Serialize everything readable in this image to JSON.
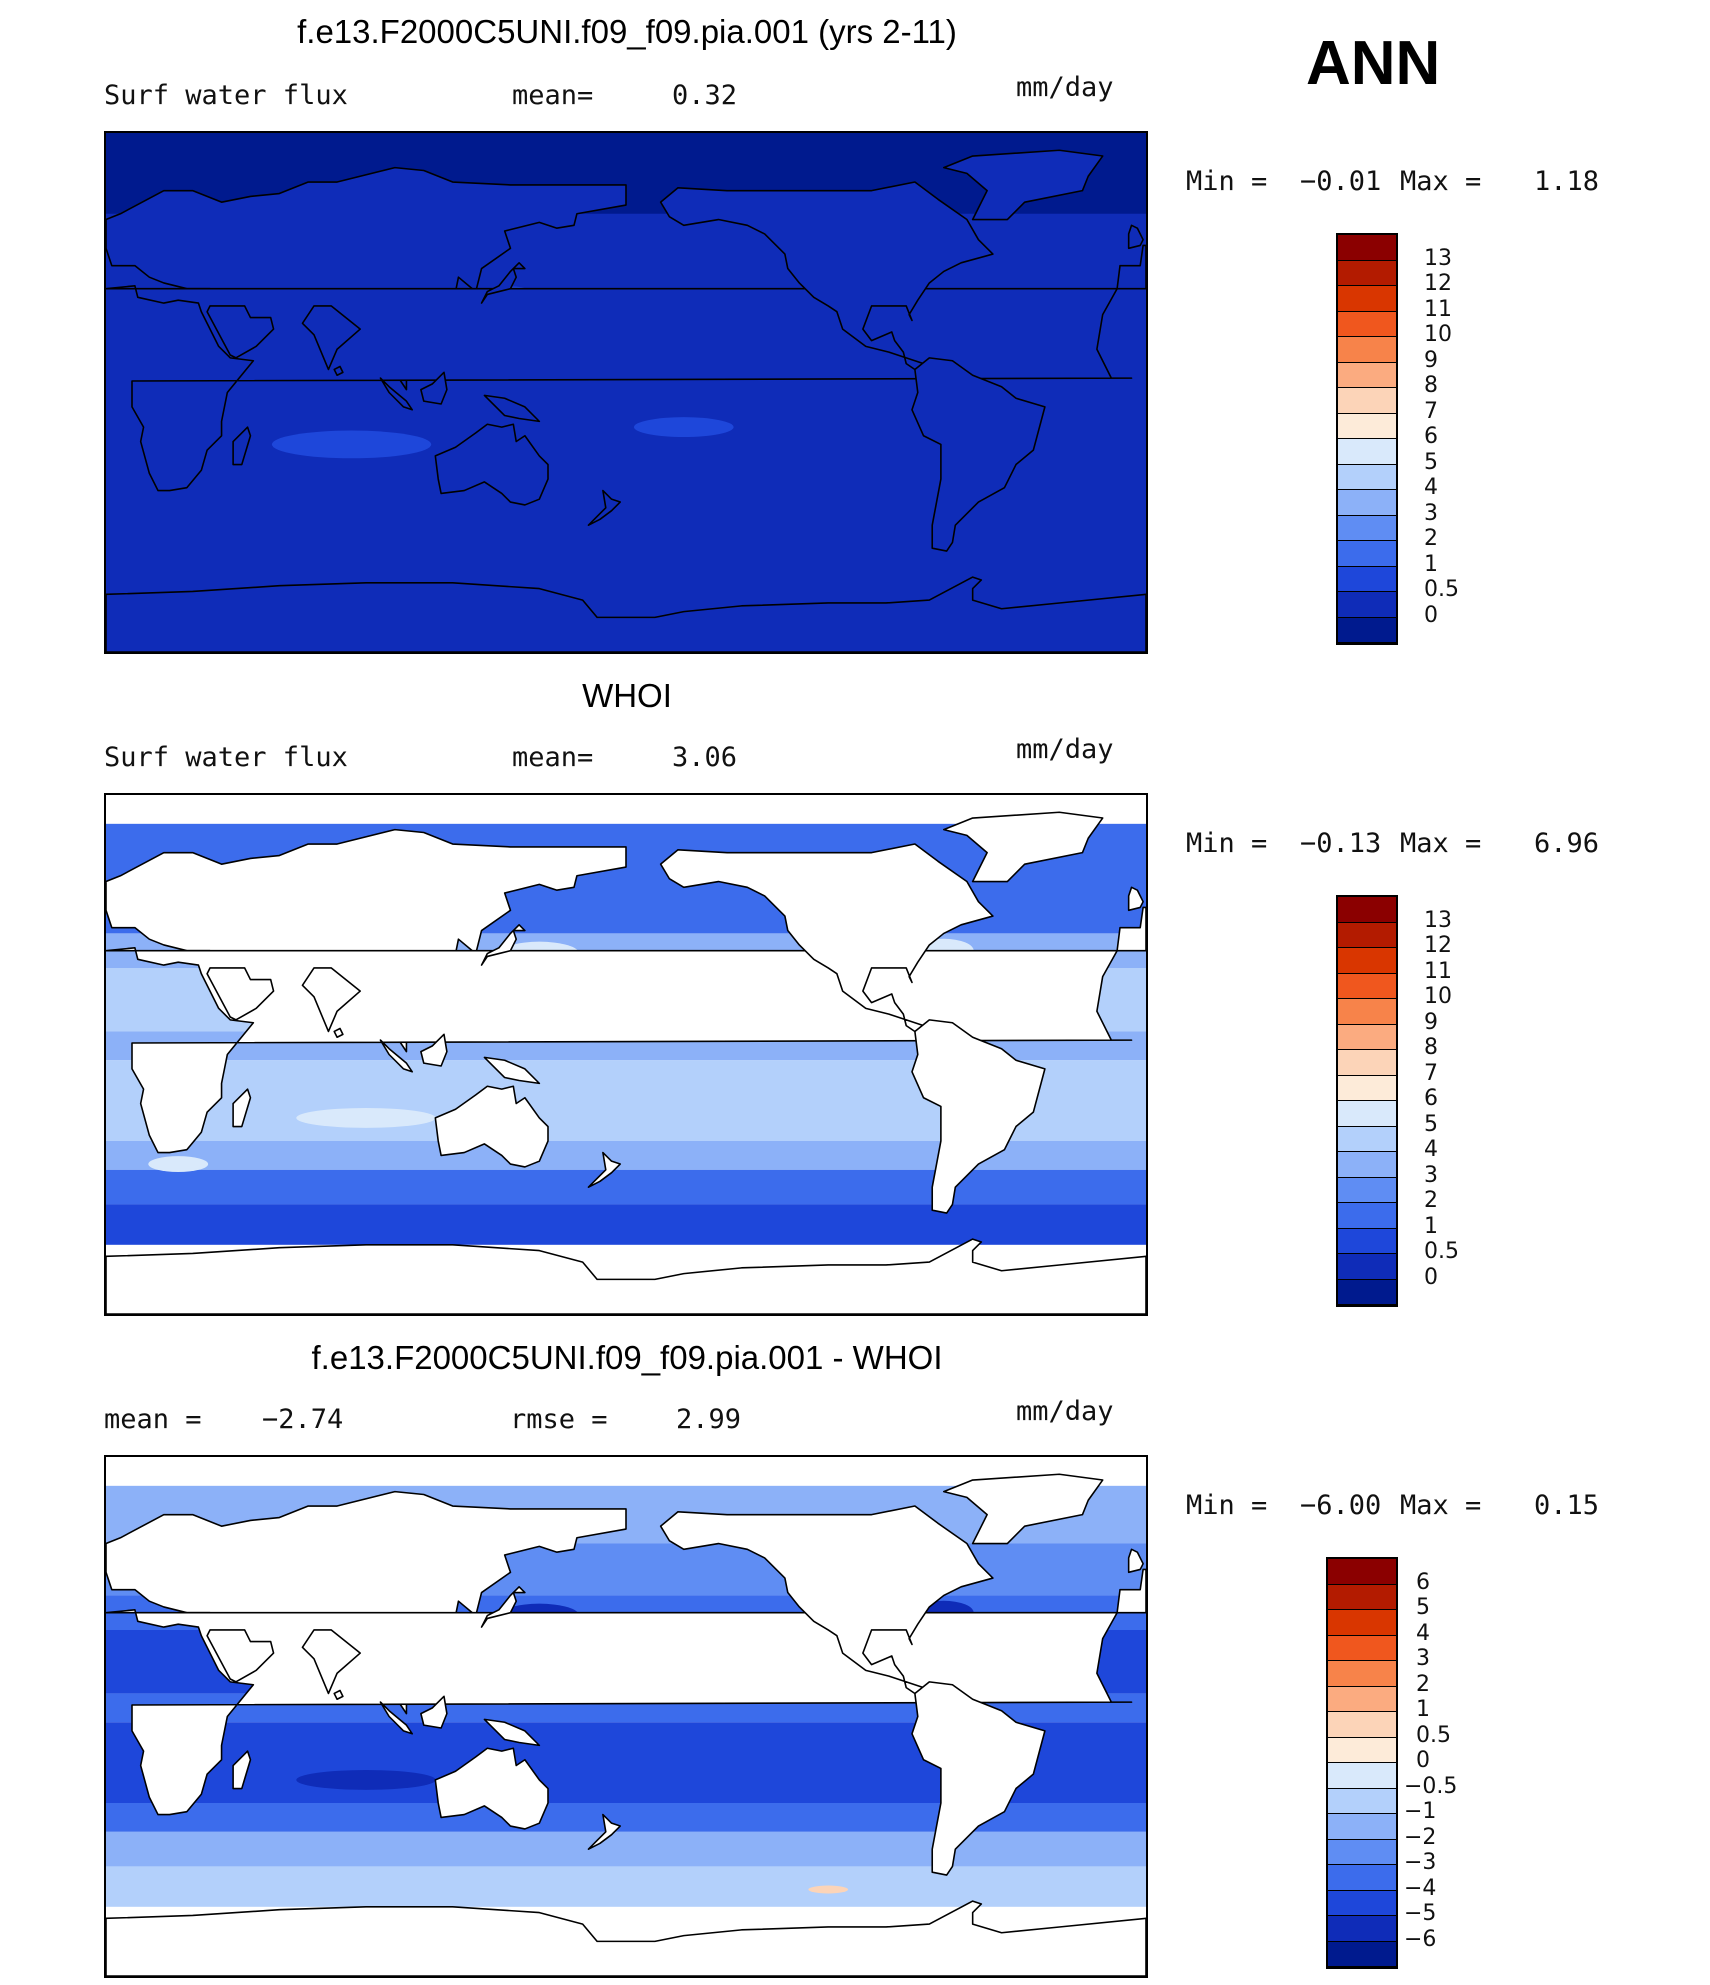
{
  "season": "ANN",
  "panels": [
    {
      "title": "f.e13.F2000C5UNI.f09_f09.pia.001 (yrs 2-11)",
      "left_label": "Surf water flux",
      "mid_label": "mean=",
      "mid_value": "0.32",
      "units": "mm/day",
      "min_label": "Min =",
      "min_value": "−0.01",
      "max_label": "Max =",
      "max_value": "1.18",
      "colorbar_ticks": [
        "13",
        "12",
        "11",
        "10",
        "9",
        "8",
        "7",
        "6",
        "5",
        "4",
        "3",
        "2",
        "1",
        "0.5",
        "0"
      ],
      "colorbar_colors": [
        "#8b0000",
        "#b31b00",
        "#d93600",
        "#f0571e",
        "#f7834a",
        "#fbab80",
        "#fcd4b8",
        "#fdebd9",
        "#d9e9fb",
        "#b3d0fb",
        "#8cb1f8",
        "#5f8df3",
        "#3c6cec",
        "#1e47da",
        "#0f2cb8",
        "#001a8e"
      ],
      "field": "model"
    },
    {
      "title": "WHOI",
      "left_label": "Surf water flux",
      "mid_label": "mean=",
      "mid_value": "3.06",
      "units": "mm/day",
      "min_label": "Min =",
      "min_value": "−0.13",
      "max_label": "Max =",
      "max_value": "6.96",
      "colorbar_ticks": [
        "13",
        "12",
        "11",
        "10",
        "9",
        "8",
        "7",
        "6",
        "5",
        "4",
        "3",
        "2",
        "1",
        "0.5",
        "0"
      ],
      "colorbar_colors": [
        "#8b0000",
        "#b31b00",
        "#d93600",
        "#f0571e",
        "#f7834a",
        "#fbab80",
        "#fcd4b8",
        "#fdebd9",
        "#d9e9fb",
        "#b3d0fb",
        "#8cb1f8",
        "#5f8df3",
        "#3c6cec",
        "#1e47da",
        "#0f2cb8",
        "#001a8e"
      ],
      "field": "obs"
    },
    {
      "title": "f.e13.F2000C5UNI.f09_f09.pia.001 - WHOI",
      "left_label": "mean =",
      "left_value": "−2.74",
      "mid_label": "rmse =",
      "mid_value": "2.99",
      "units": "mm/day",
      "min_label": "Min =",
      "min_value": "−6.00",
      "max_label": "Max =",
      "max_value": "0.15",
      "colorbar_ticks": [
        "6",
        "5",
        "4",
        "3",
        "2",
        "1",
        "0.5",
        "0",
        "−0.5",
        "−1",
        "−2",
        "−3",
        "−4",
        "−5",
        "−6"
      ],
      "colorbar_colors": [
        "#8b0000",
        "#b31b00",
        "#d93600",
        "#f0571e",
        "#f7834a",
        "#fbab80",
        "#fcd4b8",
        "#fdebd9",
        "#d9e9fb",
        "#b3d0fb",
        "#8cb1f8",
        "#5f8df3",
        "#3c6cec",
        "#1e47da",
        "#0f2cb8",
        "#001a8e"
      ],
      "field": "diff"
    }
  ]
}
